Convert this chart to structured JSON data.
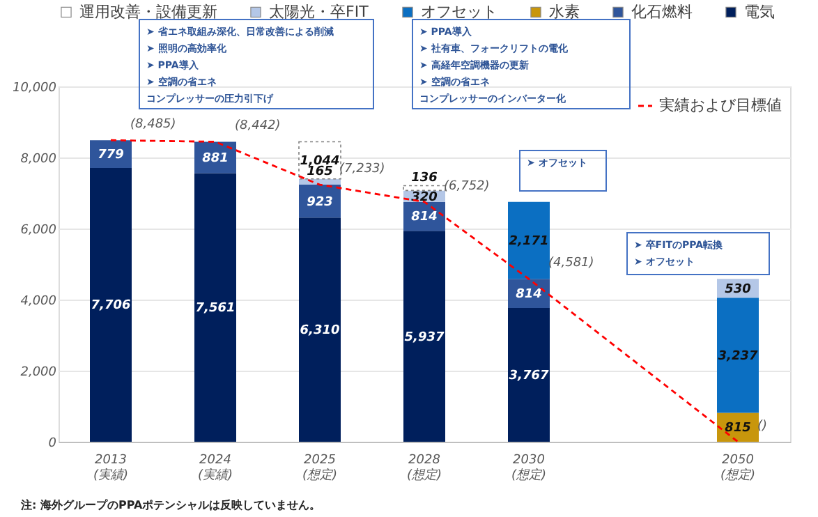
{
  "chart_data": {
    "type": "bar",
    "stacked": true,
    "legend": "top",
    "grid": "y",
    "categories": [
      "2013\n(実績)",
      "2024\n(実績)",
      "2025\n(想定)",
      "2028\n(想定)",
      "2030\n(想定)",
      null,
      "2050\n(想定)"
    ],
    "ylim": [
      0,
      10000
    ],
    "yticks": [
      0,
      {
        "value": 2000,
        "label": "2,000"
      },
      {
        "value": 4000,
        "label": "4,000"
      },
      {
        "value": 6000,
        "label": "6,000"
      },
      {
        "value": 8000,
        "label": "8,000"
      },
      {
        "value": 10000,
        "label": "10,000"
      }
    ],
    "series": [
      {
        "name": "電気",
        "color": "#001f5c",
        "values": [
          7706,
          7561,
          6310,
          5937,
          3767,
          null,
          null
        ],
        "value_labels": [
          "7,706",
          "7,561",
          "6,310",
          "5,937",
          "3,767",
          null,
          null
        ]
      },
      {
        "name": "化石燃料",
        "color": "#2f559b",
        "values": [
          779,
          881,
          923,
          814,
          814,
          null,
          null
        ],
        "value_labels": [
          "779",
          "881",
          "923",
          "814",
          "814",
          null,
          null
        ]
      },
      {
        "name": "水素",
        "color": "#c8960c",
        "values": [
          null,
          null,
          null,
          null,
          null,
          null,
          815
        ],
        "value_labels": [
          null,
          null,
          null,
          null,
          null,
          null,
          "815"
        ]
      },
      {
        "name": "オフセット",
        "color": "#0b6fc2",
        "values": [
          null,
          null,
          null,
          null,
          2171,
          null,
          3237
        ],
        "value_labels": [
          null,
          null,
          null,
          null,
          "2,171",
          null,
          "3,237"
        ]
      },
      {
        "name": "太陽光・卒FIT",
        "color": "#b4c7e7",
        "values": [
          null,
          null,
          165,
          320,
          null,
          null,
          530
        ],
        "value_labels": [
          null,
          null,
          "165",
          "320",
          null,
          null,
          "530"
        ]
      },
      {
        "name": "運用改善・設備更新",
        "color": "#ffffff",
        "values": [
          null,
          null,
          1044,
          136,
          null,
          null,
          null
        ],
        "value_labels": [
          null,
          null,
          "1,044",
          "136",
          null,
          null,
          null
        ]
      },
      {
        "name": "実績および目標値",
        "type": "line",
        "color": "#ff0000",
        "line_style": "dashed",
        "values": [
          8485,
          8442,
          7233,
          6752,
          4581,
          null,
          0
        ],
        "value_labels": [
          "(8,485)",
          "(8,442)",
          "(7,233)",
          "(6,752)",
          "(4,581)",
          null,
          "()"
        ]
      }
    ],
    "annotations": [
      "➤ 省エネ取組み深化、日常改善による削減\n➤ 照明の高効率化\n➤ PPA導入\n➤ 空調の省エネコンプレッサーの圧力引下げ",
      "➤ PPA導入\n➤ 社有車、フォークリフトの電化\n➤ 高経年空調機器の更新\n➤ 空調の省エネコンプレッサーのインバーター化",
      "➤ オフセット",
      "➤ 卒FITのPPA転換\n➤ オフセット",
      "注: 海外グループのPPAポテンシャルは反映していません。"
    ]
  }
}
